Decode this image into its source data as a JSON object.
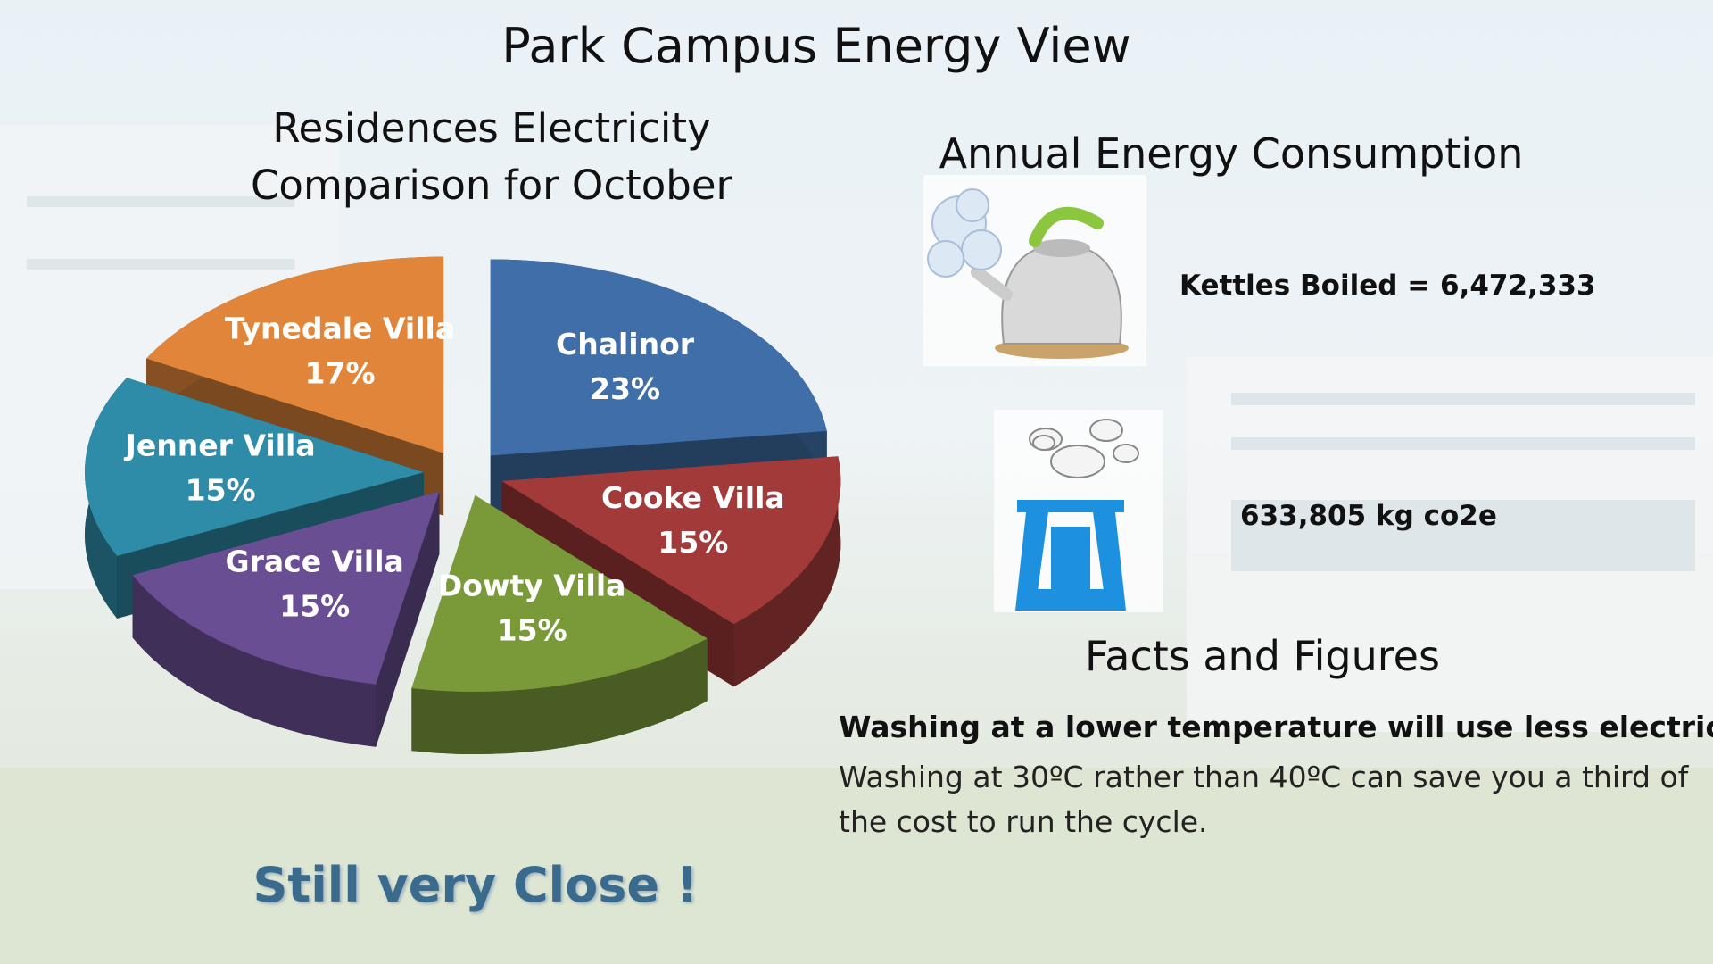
{
  "page": {
    "title": "Park Campus Energy View"
  },
  "chart_data": {
    "type": "pie",
    "title": "Residences Electricity Comparison for October",
    "categories": [
      "Chalinor",
      "Cooke Villa",
      "Dowty Villa",
      "Grace Villa",
      "Jenner Villa",
      "Tynedale Villa"
    ],
    "values": [
      23,
      15,
      15,
      15,
      15,
      17
    ],
    "value_labels": [
      "23%",
      "15%",
      "15%",
      "15%",
      "15%",
      "17%"
    ],
    "colors": [
      "#3f6ea8",
      "#a33a3a",
      "#7a9a3a",
      "#6a4e94",
      "#2e8ca8",
      "#e0853a"
    ],
    "annotation": "Still very Close !"
  },
  "energy": {
    "heading": "Annual Energy Consumption",
    "kettles": "Kettles Boiled = 6,472,333",
    "co2": "633,805 kg co2e"
  },
  "facts": {
    "heading": "Facts and Figures",
    "highlight": "Washing at a lower temperature will use less electricity.",
    "text": "Washing at 30ºC rather than 40ºC can save you a third of the cost to run the cycle."
  }
}
